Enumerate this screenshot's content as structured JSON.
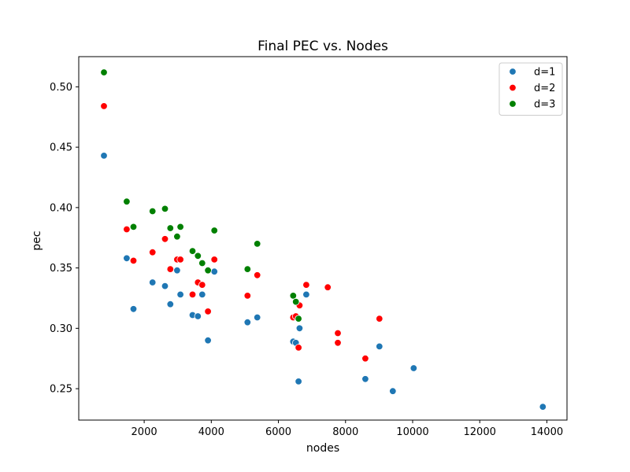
{
  "chart_data": {
    "type": "scatter",
    "title": "Final PEC vs. Nodes",
    "xlabel": "nodes",
    "ylabel": "pec",
    "xlim": [
      50,
      14600
    ],
    "ylim": [
      0.224,
      0.525
    ],
    "xticks": [
      2000,
      4000,
      6000,
      8000,
      10000,
      12000,
      14000
    ],
    "yticks": [
      0.25,
      0.3,
      0.35,
      0.4,
      0.45,
      0.5
    ],
    "xtick_labels": [
      "2000",
      "4000",
      "6000",
      "8000",
      "10000",
      "12000",
      "14000"
    ],
    "ytick_labels": [
      "0.25",
      "0.30",
      "0.35",
      "0.40",
      "0.45",
      "0.50"
    ],
    "grid": false,
    "legend_position": "top-right",
    "series": [
      {
        "name": "d=1",
        "color": "#1f77b4",
        "points": [
          [
            800,
            0.443
          ],
          [
            1480,
            0.358
          ],
          [
            1680,
            0.316
          ],
          [
            2250,
            0.338
          ],
          [
            2620,
            0.335
          ],
          [
            2780,
            0.32
          ],
          [
            2980,
            0.348
          ],
          [
            3080,
            0.328
          ],
          [
            3440,
            0.311
          ],
          [
            3600,
            0.31
          ],
          [
            3730,
            0.328
          ],
          [
            3900,
            0.29
          ],
          [
            4090,
            0.347
          ],
          [
            5080,
            0.305
          ],
          [
            5370,
            0.309
          ],
          [
            6440,
            0.289
          ],
          [
            6520,
            0.288
          ],
          [
            6600,
            0.256
          ],
          [
            6630,
            0.3
          ],
          [
            6830,
            0.328
          ],
          [
            8590,
            0.258
          ],
          [
            9010,
            0.285
          ],
          [
            9410,
            0.248
          ],
          [
            10030,
            0.267
          ],
          [
            13880,
            0.235
          ]
        ]
      },
      {
        "name": "d=2",
        "color": "#ff0000",
        "points": [
          [
            800,
            0.484
          ],
          [
            1480,
            0.382
          ],
          [
            1680,
            0.356
          ],
          [
            2250,
            0.363
          ],
          [
            2620,
            0.374
          ],
          [
            2780,
            0.349
          ],
          [
            2980,
            0.357
          ],
          [
            3080,
            0.357
          ],
          [
            3440,
            0.328
          ],
          [
            3600,
            0.338
          ],
          [
            3730,
            0.336
          ],
          [
            3900,
            0.314
          ],
          [
            4090,
            0.357
          ],
          [
            5080,
            0.327
          ],
          [
            5370,
            0.344
          ],
          [
            6440,
            0.309
          ],
          [
            6520,
            0.31
          ],
          [
            6600,
            0.284
          ],
          [
            6630,
            0.319
          ],
          [
            6830,
            0.336
          ],
          [
            7470,
            0.334
          ],
          [
            7770,
            0.296
          ],
          [
            7770,
            0.288
          ],
          [
            8590,
            0.275
          ],
          [
            9010,
            0.308
          ]
        ]
      },
      {
        "name": "d=3",
        "color": "#008000",
        "points": [
          [
            800,
            0.512
          ],
          [
            1480,
            0.405
          ],
          [
            1680,
            0.384
          ],
          [
            2250,
            0.397
          ],
          [
            2620,
            0.399
          ],
          [
            2780,
            0.383
          ],
          [
            2980,
            0.376
          ],
          [
            3080,
            0.384
          ],
          [
            3440,
            0.364
          ],
          [
            3600,
            0.36
          ],
          [
            3730,
            0.354
          ],
          [
            3900,
            0.348
          ],
          [
            4090,
            0.381
          ],
          [
            5080,
            0.349
          ],
          [
            5370,
            0.37
          ],
          [
            6440,
            0.327
          ],
          [
            6520,
            0.322
          ],
          [
            6600,
            0.308
          ]
        ]
      }
    ]
  }
}
